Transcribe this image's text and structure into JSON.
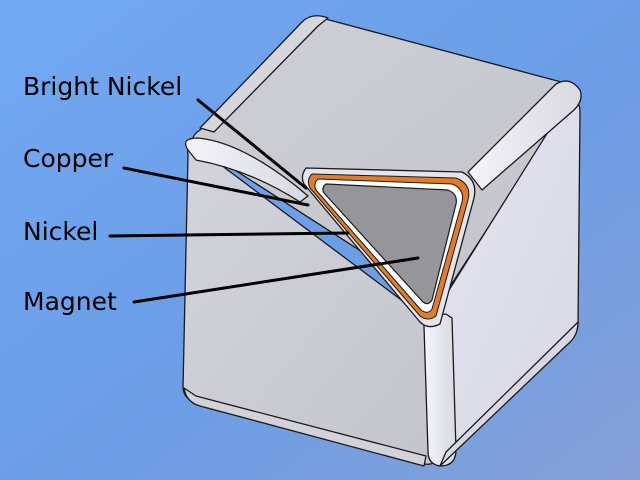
{
  "labels": {
    "bright_nickel": "Bright Nickel",
    "copper": "Copper",
    "nickel": "Nickel",
    "magnet": "Magnet"
  },
  "colors": {
    "background_left": "#6ea3ea",
    "background_right": "#7d9ee0",
    "cube_face_left": "#cdcdd6",
    "cube_face_right": "#dedde9",
    "cube_face_top": "#c8c8cf",
    "copper_layer": "#e07d2a",
    "magnet_core": "#96969a",
    "leader_lines": "#000000"
  },
  "layers": [
    "Bright Nickel",
    "Copper",
    "Nickel",
    "Magnet"
  ]
}
